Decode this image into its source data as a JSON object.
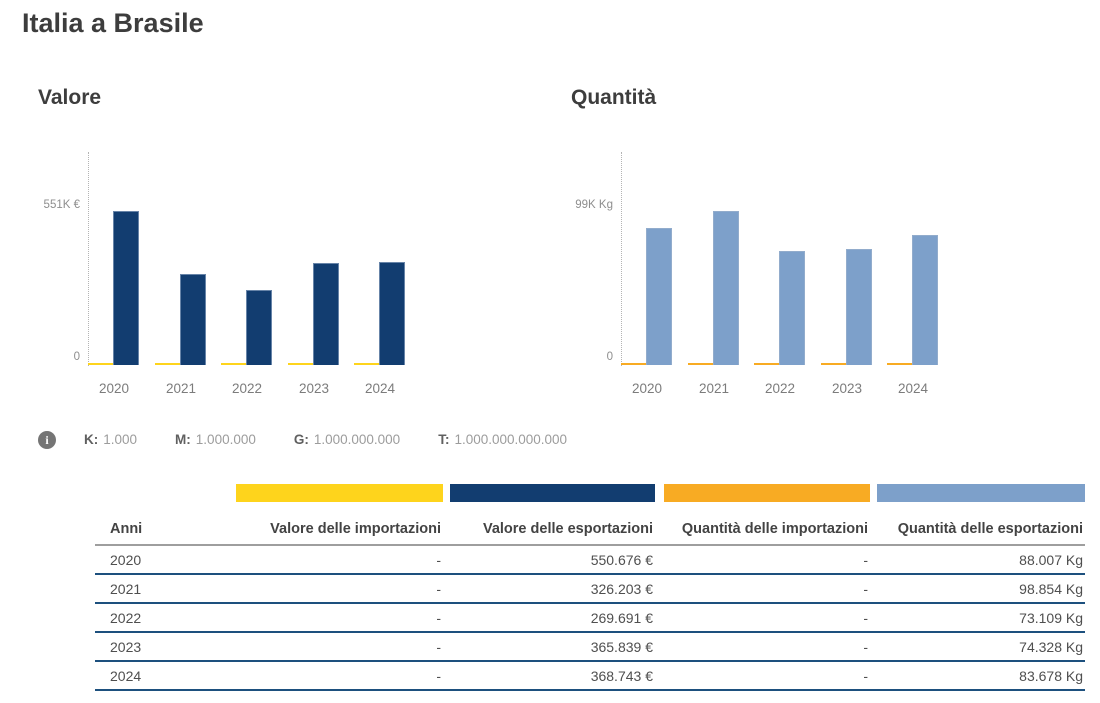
{
  "page": {
    "title": "Italia a Brasile"
  },
  "chart_data": [
    {
      "type": "bar",
      "title": "Valore",
      "categories": [
        "2020",
        "2021",
        "2022",
        "2023",
        "2024"
      ],
      "series": [
        {
          "name": "Valore delle importazioni",
          "color": "#fed41c",
          "values": [
            0,
            0,
            0,
            0,
            0
          ]
        },
        {
          "name": "Valore delle esportazioni",
          "color": "#123d70",
          "values": [
            550676,
            326203,
            269691,
            365839,
            368743
          ]
        }
      ],
      "ylabel": "€",
      "ylim": [
        0,
        551000
      ],
      "y_tick_labels": [
        "0",
        "551K €"
      ],
      "grid": false,
      "legend_position": "below-as-table-swatches"
    },
    {
      "type": "bar",
      "title": "Quantità",
      "categories": [
        "2020",
        "2021",
        "2022",
        "2023",
        "2024"
      ],
      "series": [
        {
          "name": "Quantità delle importazioni",
          "color": "#f8ab23",
          "values": [
            0,
            0,
            0,
            0,
            0
          ]
        },
        {
          "name": "Quantità delle esportazioni",
          "color": "#7da0ca",
          "values": [
            88007,
            98854,
            73109,
            74328,
            83678
          ]
        }
      ],
      "ylabel": "Kg",
      "ylim": [
        0,
        99000
      ],
      "y_tick_labels": [
        "0",
        "99K Kg"
      ],
      "grid": false,
      "legend_position": "below-as-table-swatches"
    }
  ],
  "info": {
    "icon": "info-icon",
    "items": [
      {
        "label": "K:",
        "value": "1.000"
      },
      {
        "label": "M:",
        "value": "1.000.000"
      },
      {
        "label": "G:",
        "value": "1.000.000.000"
      },
      {
        "label": "T:",
        "value": "1.000.000.000.000"
      }
    ]
  },
  "legend": {
    "items": [
      {
        "label": "Valore delle importazioni",
        "color": "#fed41c"
      },
      {
        "label": "Valore delle esportazioni",
        "color": "#123d70"
      },
      {
        "label": "Quantità delle importazioni",
        "color": "#f8ab23"
      },
      {
        "label": "Quantità delle esportazioni",
        "color": "#7da0ca"
      }
    ]
  },
  "table": {
    "headers": [
      "Anni",
      "Valore delle importazioni",
      "Valore delle esportazioni",
      "Quantità delle importazioni",
      "Quantità delle esportazioni"
    ],
    "rows": [
      [
        "2020",
        "-",
        "550.676 €",
        "-",
        "88.007 Kg"
      ],
      [
        "2021",
        "-",
        "326.203 €",
        "-",
        "98.854 Kg"
      ],
      [
        "2022",
        "-",
        "269.691 €",
        "-",
        "73.109 Kg"
      ],
      [
        "2023",
        "-",
        "365.839 €",
        "-",
        "74.328 Kg"
      ],
      [
        "2024",
        "-",
        "368.743 €",
        "-",
        "83.678 Kg"
      ]
    ]
  }
}
